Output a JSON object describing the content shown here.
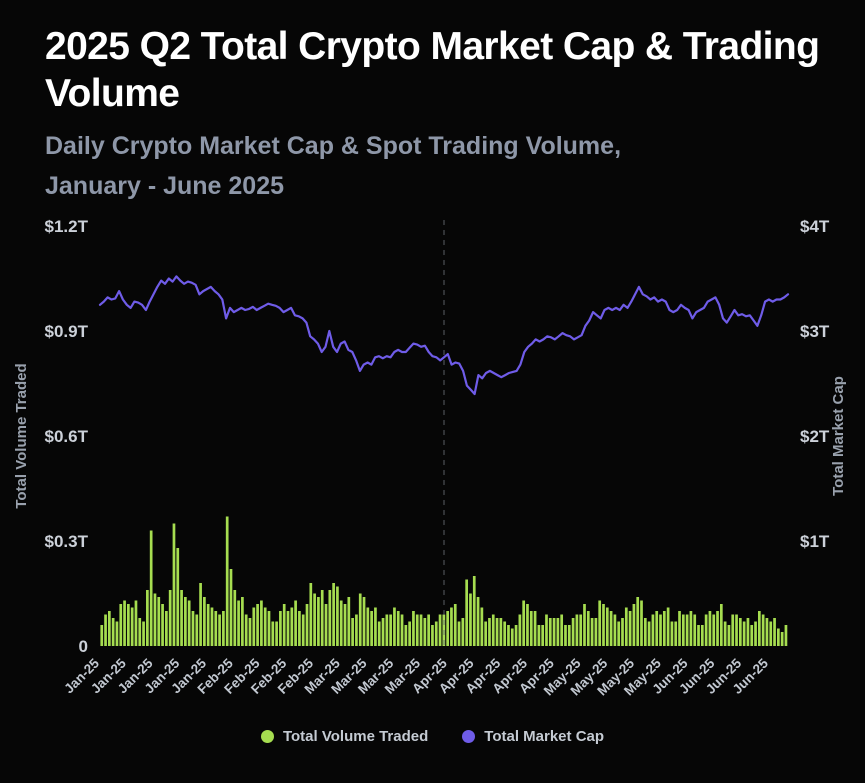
{
  "header": {
    "title": "2025 Q2 Total Crypto Market Cap & Trading Volume",
    "subtitle_line1": "Daily Crypto Market Cap & Spot Trading Volume,",
    "subtitle_line2": "January - June 2025"
  },
  "colors": {
    "background": "#060606",
    "title_text": "#ffffff",
    "subtitle_text": "#8e97a8",
    "axis_text": "#ccd1d9",
    "volume_green": "#a6dd50",
    "market_cap_purple": "#6f5ce8",
    "divider_gray": "#6a6e75"
  },
  "legend": {
    "items": [
      {
        "label": "Total Volume Traded",
        "color": "#a6dd50"
      },
      {
        "label": "Total Market Cap",
        "color": "#6f5ce8"
      }
    ]
  },
  "chart_data": {
    "type": "bar+line",
    "title": "2025 Q2 Total Crypto Market Cap & Trading Volume",
    "subtitle": "Daily Crypto Market Cap & Spot Trading Volume, January - June 2025",
    "grid": false,
    "legend_position": "bottom",
    "q2_divider_index": 90,
    "left_axis": {
      "label": "Total Volume Traded",
      "ticks": [
        "$1.2T",
        "$0.9T",
        "$0.6T",
        "$0.3T",
        "0"
      ],
      "tick_values": [
        1.2,
        0.9,
        0.6,
        0.3,
        0
      ],
      "range": [
        0,
        1.2
      ]
    },
    "right_axis": {
      "label": "Total Market Cap",
      "ticks": [
        "$4T",
        "$3T",
        "$2T",
        "$1T"
      ],
      "tick_values": [
        4,
        3,
        2,
        1
      ],
      "range": [
        0,
        4
      ]
    },
    "x_tick_indices": [
      0,
      7,
      14,
      21,
      28,
      35,
      42,
      49,
      56,
      63,
      70,
      77,
      84,
      91,
      98,
      105,
      112,
      119,
      126,
      133,
      140,
      147,
      154,
      161,
      168,
      175
    ],
    "x_tick_labels": [
      "Jan-25",
      "Jan-25",
      "Jan-25",
      "Jan-25",
      "Jan-25",
      "Feb-25",
      "Feb-25",
      "Feb-25",
      "Feb-25",
      "Mar-25",
      "Mar-25",
      "Mar-25",
      "Mar-25",
      "Apr-25",
      "Apr-25",
      "Apr-25",
      "Apr-25",
      "Apr-25",
      "May-25",
      "May-25",
      "May-25",
      "May-25",
      "Jun-25",
      "Jun-25",
      "Jun-25",
      "Jun-25"
    ],
    "series": [
      {
        "name": "Total Volume Traded",
        "type": "bar",
        "axis": "left",
        "unit": "trillion USD",
        "color": "#a6dd50",
        "values": [
          0.06,
          0.09,
          0.1,
          0.08,
          0.07,
          0.12,
          0.13,
          0.12,
          0.11,
          0.13,
          0.08,
          0.07,
          0.16,
          0.33,
          0.15,
          0.14,
          0.12,
          0.1,
          0.16,
          0.35,
          0.28,
          0.16,
          0.14,
          0.13,
          0.1,
          0.09,
          0.18,
          0.14,
          0.12,
          0.11,
          0.1,
          0.09,
          0.1,
          0.37,
          0.22,
          0.16,
          0.13,
          0.14,
          0.09,
          0.08,
          0.11,
          0.12,
          0.13,
          0.11,
          0.1,
          0.07,
          0.07,
          0.1,
          0.12,
          0.1,
          0.11,
          0.13,
          0.1,
          0.09,
          0.12,
          0.18,
          0.15,
          0.14,
          0.16,
          0.12,
          0.16,
          0.18,
          0.17,
          0.13,
          0.12,
          0.14,
          0.08,
          0.09,
          0.15,
          0.14,
          0.11,
          0.1,
          0.11,
          0.07,
          0.08,
          0.09,
          0.09,
          0.11,
          0.1,
          0.09,
          0.06,
          0.07,
          0.1,
          0.09,
          0.09,
          0.08,
          0.09,
          0.06,
          0.07,
          0.09,
          0.09,
          0.1,
          0.11,
          0.12,
          0.07,
          0.08,
          0.19,
          0.15,
          0.2,
          0.14,
          0.11,
          0.07,
          0.08,
          0.09,
          0.08,
          0.08,
          0.07,
          0.06,
          0.05,
          0.06,
          0.09,
          0.13,
          0.12,
          0.1,
          0.1,
          0.06,
          0.06,
          0.09,
          0.08,
          0.08,
          0.08,
          0.09,
          0.06,
          0.06,
          0.08,
          0.09,
          0.09,
          0.12,
          0.1,
          0.08,
          0.08,
          0.13,
          0.12,
          0.11,
          0.1,
          0.09,
          0.07,
          0.08,
          0.11,
          0.1,
          0.12,
          0.14,
          0.13,
          0.08,
          0.07,
          0.09,
          0.1,
          0.09,
          0.1,
          0.11,
          0.07,
          0.07,
          0.1,
          0.09,
          0.09,
          0.1,
          0.09,
          0.06,
          0.06,
          0.09,
          0.1,
          0.09,
          0.1,
          0.12,
          0.07,
          0.06,
          0.09,
          0.09,
          0.08,
          0.07,
          0.08,
          0.06,
          0.07,
          0.1,
          0.09,
          0.08,
          0.07,
          0.08,
          0.05,
          0.04,
          0.06
        ]
      },
      {
        "name": "Total Market Cap",
        "type": "line",
        "axis": "right",
        "unit": "trillion USD",
        "color": "#6f5ce8",
        "values": [
          3.25,
          3.28,
          3.32,
          3.3,
          3.31,
          3.38,
          3.3,
          3.25,
          3.22,
          3.28,
          3.27,
          3.25,
          3.2,
          3.28,
          3.35,
          3.42,
          3.48,
          3.45,
          3.5,
          3.47,
          3.52,
          3.48,
          3.45,
          3.47,
          3.46,
          3.44,
          3.35,
          3.38,
          3.4,
          3.42,
          3.38,
          3.35,
          3.3,
          3.12,
          3.22,
          3.18,
          3.2,
          3.22,
          3.2,
          3.21,
          3.23,
          3.2,
          3.22,
          3.24,
          3.26,
          3.25,
          3.24,
          3.22,
          3.18,
          3.2,
          3.22,
          3.15,
          3.14,
          3.12,
          3.08,
          2.95,
          2.92,
          2.88,
          2.8,
          2.85,
          3.0,
          2.85,
          2.8,
          2.88,
          2.9,
          2.82,
          2.8,
          2.72,
          2.62,
          2.68,
          2.7,
          2.68,
          2.75,
          2.76,
          2.74,
          2.76,
          2.75,
          2.8,
          2.82,
          2.8,
          2.8,
          2.84,
          2.88,
          2.87,
          2.85,
          2.86,
          2.8,
          2.76,
          2.75,
          2.72,
          2.75,
          2.78,
          2.68,
          2.7,
          2.69,
          2.62,
          2.48,
          2.44,
          2.4,
          2.58,
          2.55,
          2.6,
          2.62,
          2.6,
          2.58,
          2.56,
          2.58,
          2.6,
          2.61,
          2.62,
          2.68,
          2.8,
          2.85,
          2.88,
          2.92,
          2.9,
          2.92,
          2.95,
          2.94,
          2.92,
          2.95,
          2.98,
          2.96,
          2.95,
          2.92,
          2.94,
          2.96,
          3.05,
          3.1,
          3.18,
          3.15,
          3.12,
          3.2,
          3.22,
          3.2,
          3.22,
          3.2,
          3.25,
          3.22,
          3.28,
          3.35,
          3.42,
          3.35,
          3.33,
          3.3,
          3.32,
          3.28,
          3.3,
          3.28,
          3.2,
          3.18,
          3.2,
          3.25,
          3.22,
          3.2,
          3.12,
          3.18,
          3.2,
          3.22,
          3.28,
          3.3,
          3.32,
          3.25,
          3.12,
          3.08,
          3.14,
          3.2,
          3.15,
          3.16,
          3.14,
          3.15,
          3.1,
          3.05,
          3.15,
          3.28,
          3.3,
          3.28,
          3.3,
          3.3,
          3.32,
          3.35
        ]
      }
    ]
  }
}
